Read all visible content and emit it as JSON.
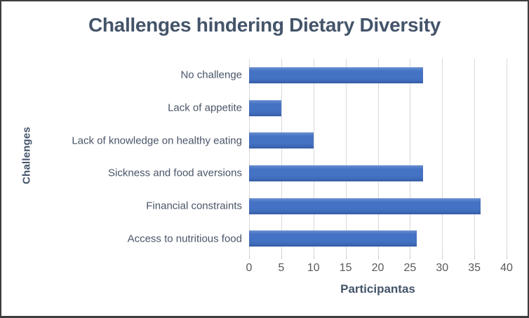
{
  "chart_data": {
    "type": "bar",
    "orientation": "horizontal",
    "title": "Challenges hindering Dietary Diversity",
    "xlabel": "Participantas",
    "ylabel": "Challenges",
    "categories": [
      "No challenge",
      "Lack of appetite",
      "Lack of knowledge on healthy eating",
      "Sickness and food aversions",
      "Financial constraints",
      "Access to nutritious food"
    ],
    "values": [
      27,
      5,
      10,
      27,
      36,
      26
    ],
    "xlim": [
      0,
      40
    ],
    "xticks": [
      0,
      5,
      10,
      15,
      20,
      25,
      30,
      35,
      40
    ],
    "grid": "vertical-only",
    "legend": "none",
    "colors": {
      "bar": "#4472C4",
      "grid": "#D9D9D9",
      "title": "#44546A",
      "axis_title": "#44546A",
      "category": "#4A5568",
      "tick": "#595959",
      "frame": "#3D3D3D"
    }
  }
}
